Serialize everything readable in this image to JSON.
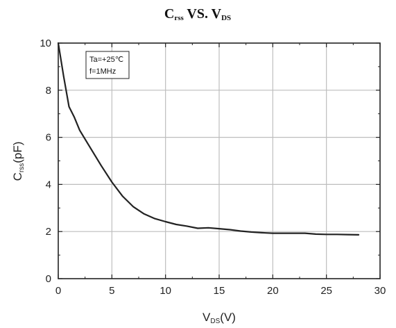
{
  "chart_data": {
    "type": "line",
    "title": {
      "main_1": "C",
      "sub_1": "rss",
      "main_2": " VS. V",
      "sub_2": "DS"
    },
    "xlabel": {
      "main": "V",
      "sub": "DS",
      "unit": "(V)"
    },
    "ylabel": {
      "main": "C",
      "sub": "rss",
      "unit": "(pF)"
    },
    "xlim": [
      0,
      30
    ],
    "ylim": [
      0,
      10
    ],
    "x_ticks": [
      "0",
      "5",
      "10",
      "15",
      "20",
      "25",
      "30"
    ],
    "y_ticks": [
      "0",
      "2",
      "4",
      "6",
      "8",
      "10"
    ],
    "grid": true,
    "legend_position": "top-left",
    "legend_lines": [
      "Ta=+25℃",
      "f=1MHz"
    ],
    "line_color": "#222222",
    "grid_color": "#bdbdbd",
    "series": [
      {
        "x": [
          0,
          0.5,
          1,
          1.5,
          2,
          3,
          4,
          5,
          6,
          7,
          8,
          9,
          10,
          11,
          12,
          13,
          14,
          15,
          16,
          17,
          18,
          19,
          20,
          21,
          22,
          23,
          24,
          25,
          26,
          27,
          28
        ],
        "y": [
          10.0,
          8.6,
          7.3,
          6.85,
          6.3,
          5.55,
          4.8,
          4.1,
          3.5,
          3.05,
          2.75,
          2.55,
          2.42,
          2.3,
          2.23,
          2.14,
          2.16,
          2.12,
          2.08,
          2.02,
          1.98,
          1.95,
          1.93,
          1.93,
          1.93,
          1.93,
          1.89,
          1.88,
          1.88,
          1.87,
          1.86
        ]
      }
    ]
  }
}
